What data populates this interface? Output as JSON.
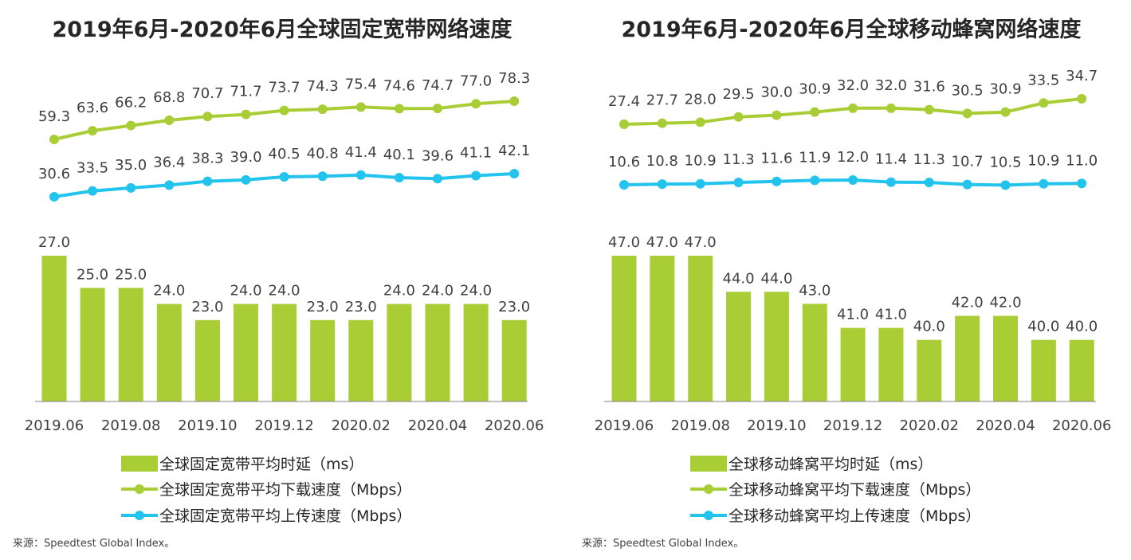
{
  "colors": {
    "bar": "#a9cd34",
    "download": "#a9cd34",
    "upload": "#22c4ee",
    "axis": "#808080"
  },
  "charts": [
    {
      "title": "2019年6月-2020年6月全球固定宽带网络速度",
      "legend": [
        "全球固定宽带平均时延（ms）",
        "全球固定宽带平均下载速度（Mbps）",
        "全球固定宽带平均上传速度（Mbps）"
      ],
      "source": "来源：Speedtest Global Index。"
    },
    {
      "title": "2019年6月-2020年6月全球移动蜂窝网络速度",
      "legend": [
        "全球移动蜂窝平均时延（ms）",
        "全球移动蜂窝平均下载速度（Mbps）",
        "全球移动蜂窝平均上传速度（Mbps）"
      ],
      "source": "来源：Speedtest Global Index。"
    }
  ],
  "chart_data": [
    {
      "type": "bar+line",
      "title": "2019年6月-2020年6月全球固定宽带网络速度",
      "categories": [
        "2019.06",
        "2019.07",
        "2019.08",
        "2019.09",
        "2019.10",
        "2019.11",
        "2019.12",
        "2020.01",
        "2020.02",
        "2020.03",
        "2020.04",
        "2020.05",
        "2020.06"
      ],
      "x_tick_labels": [
        "2019.06",
        "2019.08",
        "2019.10",
        "2019.12",
        "2020.02",
        "2020.04",
        "2020.06"
      ],
      "series": [
        {
          "name": "全球固定宽带平均时延（ms）",
          "type": "bar",
          "values": [
            27.0,
            25.0,
            25.0,
            24.0,
            23.0,
            24.0,
            24.0,
            23.0,
            23.0,
            24.0,
            24.0,
            24.0,
            23.0
          ]
        },
        {
          "name": "全球固定宽带平均下载速度（Mbps）",
          "type": "line",
          "values": [
            59.3,
            63.6,
            66.2,
            68.8,
            70.7,
            71.7,
            73.7,
            74.3,
            75.4,
            74.6,
            74.7,
            77.0,
            78.3
          ]
        },
        {
          "name": "全球固定宽带平均上传速度（Mbps）",
          "type": "line",
          "values": [
            30.6,
            33.5,
            35.0,
            36.4,
            38.3,
            39.0,
            40.5,
            40.8,
            41.4,
            40.1,
            39.6,
            41.1,
            42.1
          ]
        }
      ],
      "labels": {
        "bar": [
          "27.0",
          "25.0",
          "25.0",
          "24.0",
          "23.0",
          "24.0",
          "24.0",
          "23.0",
          "23.0",
          "24.0",
          "24.0",
          "24.0",
          "23.0"
        ],
        "download": [
          "59.3",
          "63.6",
          "66.2",
          "68.8",
          "70.7",
          "71.7",
          "73.7",
          "74.3",
          "75.4",
          "74.6",
          "74.7",
          "77.0",
          "78.3"
        ],
        "upload": [
          "30.6",
          "33.5",
          "35.0",
          "36.4",
          "38.3",
          "39.0",
          "40.5",
          "40.8",
          "41.4",
          "40.1",
          "39.6",
          "41.1",
          "42.1"
        ]
      },
      "legend_position": "bottom"
    },
    {
      "type": "bar+line",
      "title": "2019年6月-2020年6月全球移动蜂窝网络速度",
      "categories": [
        "2019.06",
        "2019.07",
        "2019.08",
        "2019.09",
        "2019.10",
        "2019.11",
        "2019.12",
        "2020.01",
        "2020.02",
        "2020.03",
        "2020.04",
        "2020.05",
        "2020.06"
      ],
      "x_tick_labels": [
        "2019.06",
        "2019.08",
        "2019.10",
        "2019.12",
        "2020.02",
        "2020.04",
        "2020.06"
      ],
      "series": [
        {
          "name": "全球移动蜂窝平均时延（ms）",
          "type": "bar",
          "values": [
            47.0,
            47.0,
            47.0,
            44.0,
            44.0,
            43.0,
            41.0,
            41.0,
            40.0,
            42.0,
            42.0,
            40.0,
            40.0
          ]
        },
        {
          "name": "全球移动蜂窝平均下载速度（Mbps）",
          "type": "line",
          "values": [
            27.4,
            27.7,
            28.0,
            29.5,
            30.0,
            30.9,
            32.0,
            32.0,
            31.6,
            30.5,
            30.9,
            33.5,
            34.7
          ]
        },
        {
          "name": "全球移动蜂窝平均上传速度（Mbps）",
          "type": "line",
          "values": [
            10.6,
            10.8,
            10.9,
            11.3,
            11.6,
            11.9,
            12.0,
            11.4,
            11.3,
            10.7,
            10.5,
            10.9,
            11.0
          ]
        }
      ],
      "labels": {
        "bar": [
          "47.0",
          "47.0",
          "47.0",
          "44.0",
          "44.0",
          "43.0",
          "41.0",
          "41.0",
          "40.0",
          "42.0",
          "42.0",
          "40.0",
          "40.0"
        ],
        "download": [
          "27.4",
          "27.7",
          "28.0",
          "29.5",
          "30.0",
          "30.9",
          "32.0",
          "32.0",
          "31.6",
          "30.5",
          "30.9",
          "33.5",
          "34.7"
        ],
        "upload": [
          "10.6",
          "10.8",
          "10.9",
          "11.3",
          "11.6",
          "11.9",
          "12.0",
          "11.4",
          "11.3",
          "10.7",
          "10.5",
          "10.9",
          "11.0"
        ]
      },
      "legend_position": "bottom"
    }
  ]
}
